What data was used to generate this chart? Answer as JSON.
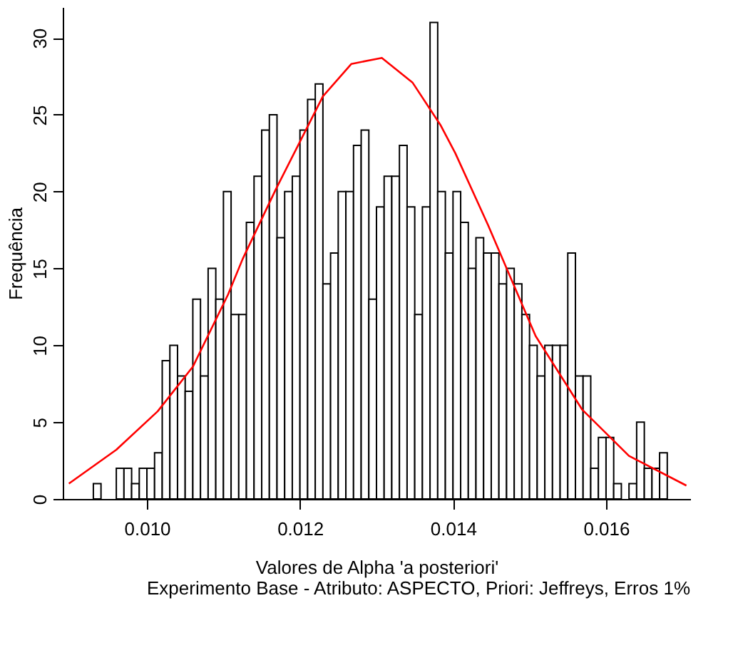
{
  "chart_data": {
    "type": "histogram",
    "xlabel": "Valores de Alpha 'a posteriori'",
    "subtitle": "Experimento Base - Atributo: ASPECTO, Priori: Jeffreys, Erros 1%",
    "ylabel": "Frequência",
    "bins": [
      0.0093,
      0.0094,
      0.0095,
      0.0096,
      0.0097,
      0.0098,
      0.0099,
      0.01,
      0.0101,
      0.0102,
      0.0103,
      0.0104,
      0.0105,
      0.0106,
      0.0107,
      0.0108,
      0.0109,
      0.011,
      0.0111,
      0.0112,
      0.0113,
      0.0114,
      0.0115,
      0.0116,
      0.0117,
      0.0118,
      0.0119,
      0.012,
      0.0121,
      0.0122,
      0.0123,
      0.0124,
      0.0125,
      0.0126,
      0.0127,
      0.0128,
      0.0129,
      0.013,
      0.0131,
      0.0132,
      0.0133,
      0.0134,
      0.0135,
      0.0136,
      0.0137,
      0.0138,
      0.0139,
      0.014,
      0.0141,
      0.0142,
      0.0143,
      0.0144,
      0.0145,
      0.0146,
      0.0147,
      0.0148,
      0.0149,
      0.015,
      0.0151,
      0.0152,
      0.0153,
      0.0154,
      0.0155,
      0.0156,
      0.0157,
      0.0158,
      0.0159,
      0.016,
      0.0161,
      0.0162,
      0.0163,
      0.0164,
      0.0165,
      0.0166,
      0.0167,
      0.0168
    ],
    "values": [
      1,
      0,
      0,
      2,
      2,
      1,
      2,
      2,
      3,
      9,
      10,
      8,
      7,
      13,
      8,
      15,
      13,
      20,
      12,
      12,
      18,
      21,
      24,
      25,
      17,
      20,
      21,
      24,
      26,
      27,
      14,
      16,
      20,
      20,
      23,
      24,
      13,
      19,
      21,
      21,
      23,
      19,
      12,
      19,
      31,
      20,
      16,
      20,
      18,
      15,
      17,
      16,
      16,
      14,
      15,
      14,
      12,
      10,
      8,
      10,
      10,
      10,
      16,
      8,
      8,
      2,
      4,
      4,
      1,
      0,
      1,
      5,
      2,
      2,
      3
    ],
    "color": "#ffffff",
    "series": [
      {
        "type": "line",
        "color": "#ff0000",
        "x": [
          0.00898,
          0.0096,
          0.01014,
          0.0106,
          0.01106,
          0.01125,
          0.01168,
          0.0123,
          0.01267,
          0.01307,
          0.01347,
          0.01384,
          0.01403,
          0.01446,
          0.01508,
          0.01569,
          0.0163,
          0.01705
        ],
        "values": [
          1.0,
          3.2,
          5.7,
          8.6,
          13.3,
          15.6,
          20.1,
          26.2,
          28.3,
          28.7,
          27.1,
          24.3,
          22.5,
          17.8,
          10.6,
          5.8,
          2.8,
          0.87
        ]
      }
    ],
    "xlim": [
      0.0089,
      0.0171
    ],
    "ylim": [
      0,
      32
    ],
    "xticks": [
      {
        "value": 0.01,
        "label": "0.010"
      },
      {
        "value": 0.012,
        "label": "0.012"
      },
      {
        "value": 0.014,
        "label": "0.014"
      },
      {
        "value": 0.016,
        "label": "0.016"
      }
    ],
    "yticks": [
      0,
      5,
      10,
      15,
      20,
      25,
      30
    ],
    "grid": false
  }
}
